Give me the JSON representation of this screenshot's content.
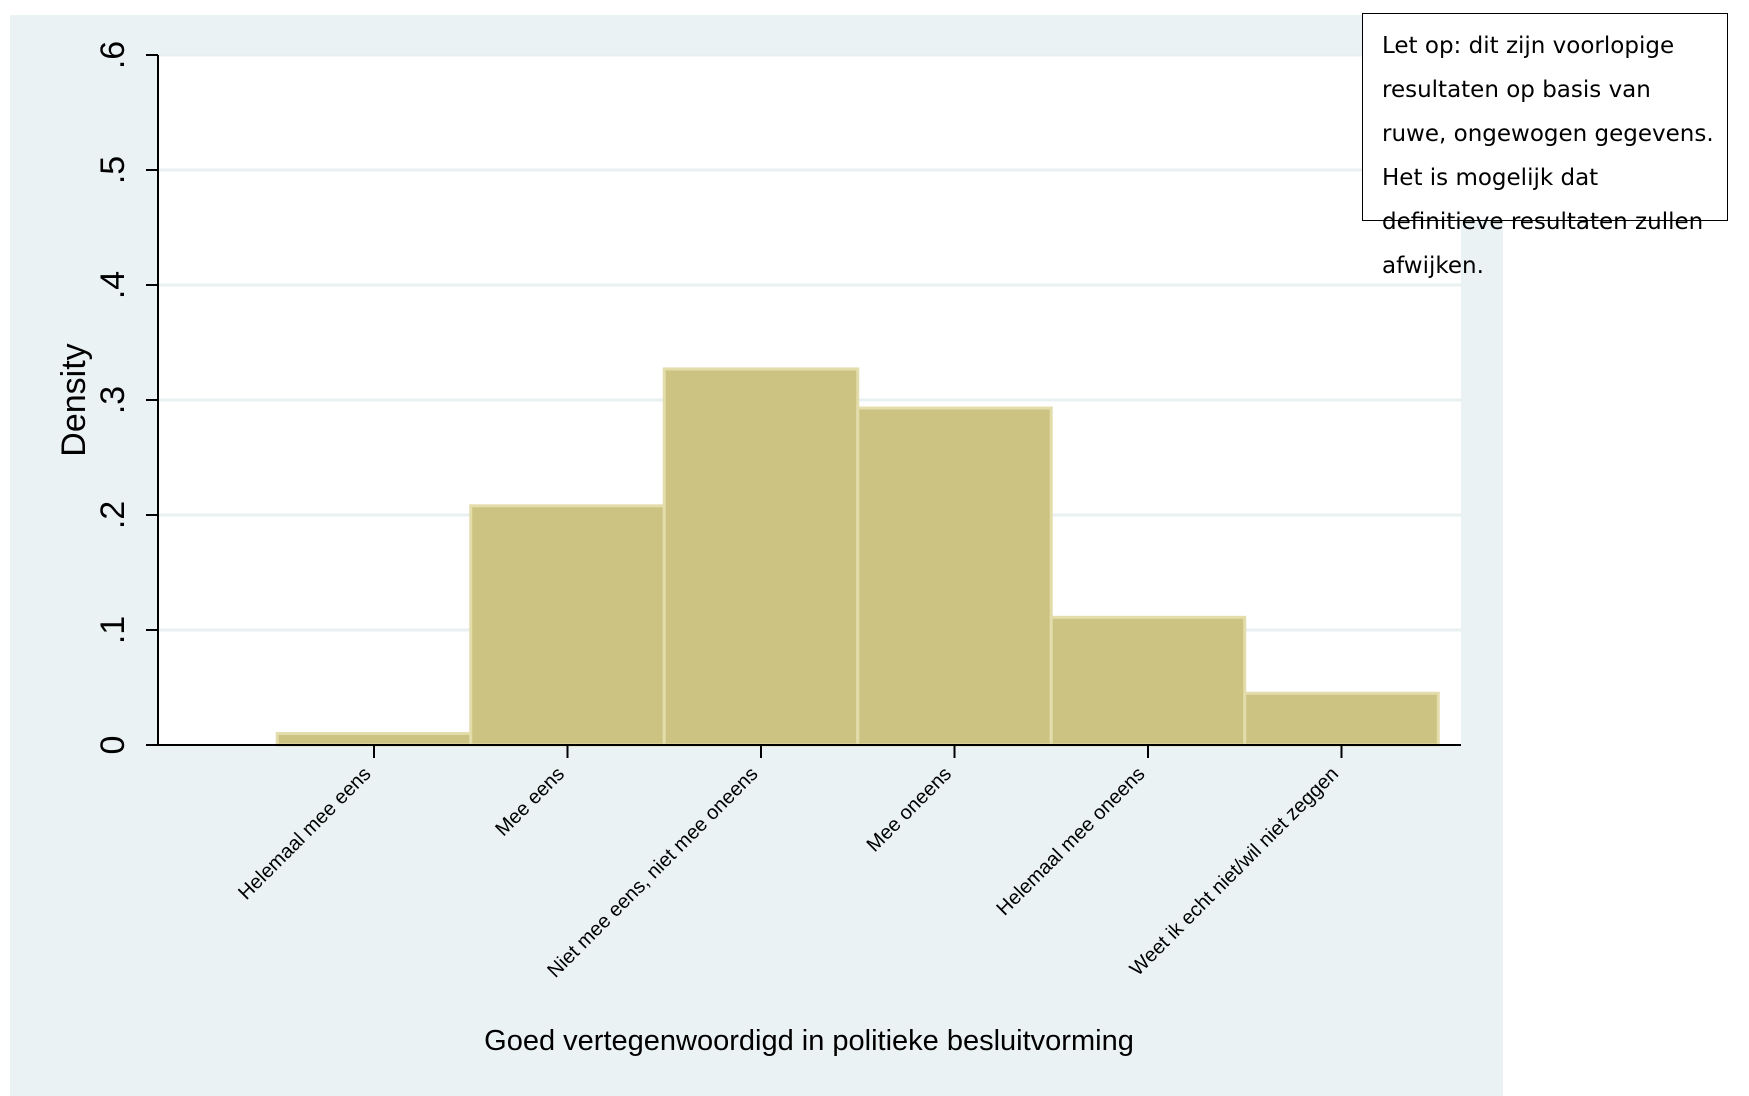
{
  "chart_data": {
    "type": "bar",
    "categories": [
      "Helemaal mee eens",
      "Mee eens",
      "Niet mee eens, niet mee oneens",
      "Mee oneens",
      "Helemaal mee oneens",
      "Weet ik echt niet/wil niet zeggen"
    ],
    "values": [
      0.01,
      0.208,
      0.327,
      0.293,
      0.111,
      0.045
    ],
    "title": "",
    "xlabel": "Goed vertegenwoordigd in politieke besluitvorming",
    "ylabel": "Density",
    "ylim": [
      0,
      0.6
    ],
    "yticks": [
      0,
      0.1,
      0.2,
      0.3,
      0.4,
      0.5,
      0.6
    ],
    "ytick_labels": [
      "0",
      ".1",
      ".2",
      ".3",
      ".4",
      ".5",
      ".6"
    ],
    "grid": true,
    "legend": "none",
    "colors": {
      "bar_fill": "#ccc382",
      "bar_edge": "#e3dcab",
      "plot_bg": "#ffffff",
      "outer_bg": "#eaf2f3",
      "grid": "#e8f0f1",
      "axis": "#000000"
    }
  },
  "note": "Let op: dit zijn voorlopige resultaten op basis van ruwe, ongewogen gegevens. Het is mogelijk dat definitieve resultaten zullen afwijken."
}
